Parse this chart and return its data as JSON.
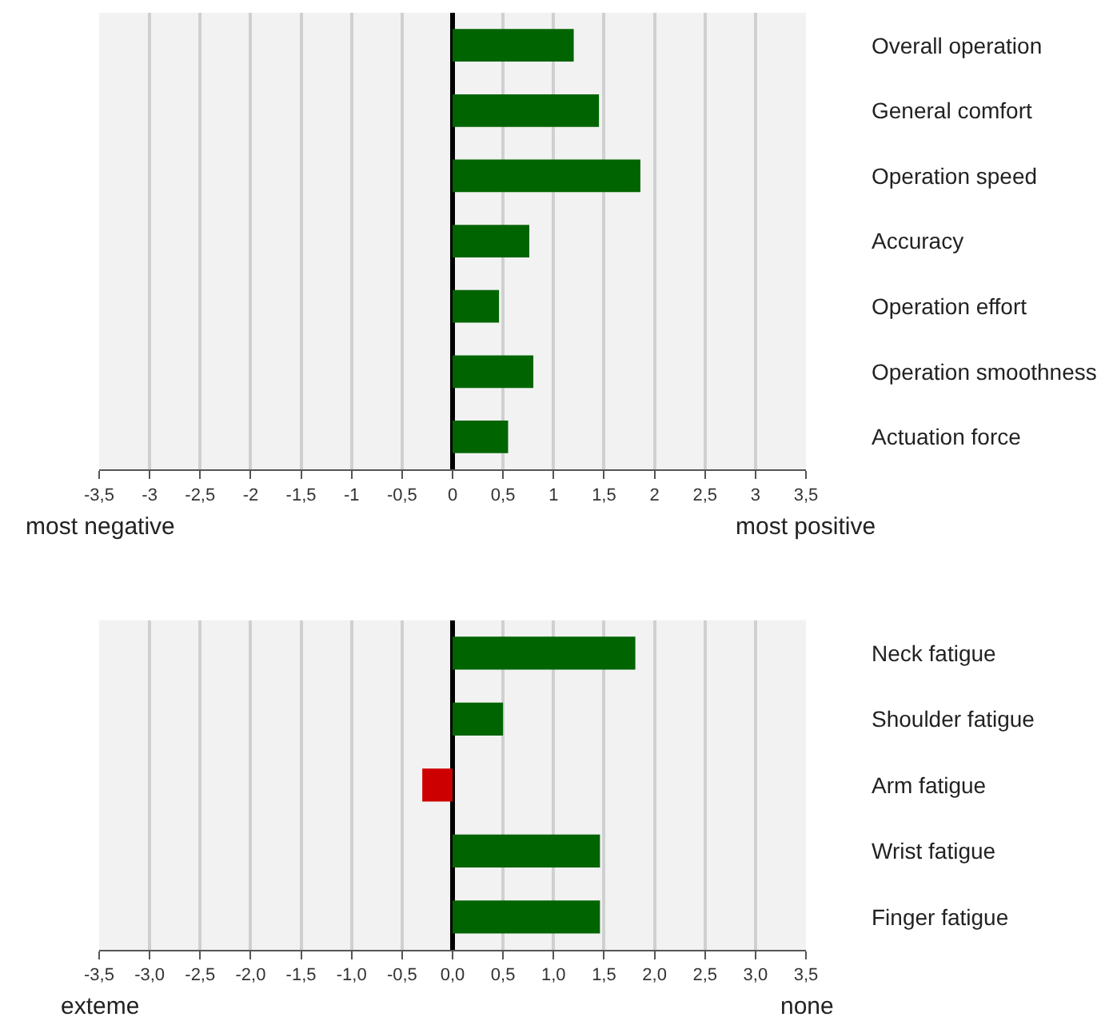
{
  "chart_data": [
    {
      "type": "bar",
      "orientation": "horizontal",
      "categories": [
        "Overall operation",
        "General comfort",
        "Operation speed",
        "Accuracy",
        "Operation effort",
        "Operation smoothness",
        "Actuation force"
      ],
      "values": [
        1.2,
        1.45,
        1.86,
        0.76,
        0.46,
        0.8,
        0.55
      ],
      "colors": [
        "#006400",
        "#006400",
        "#006400",
        "#006400",
        "#006400",
        "#006400",
        "#006400"
      ],
      "xlim": [
        -3.5,
        3.5
      ],
      "xticks": [
        {
          "value": -3.5,
          "label": "-3,5"
        },
        -3,
        {
          "value": -2.5,
          "label": "-2,5"
        },
        -2,
        {
          "value": -1.5,
          "label": "-1,5"
        },
        -1,
        {
          "value": -0.5,
          "label": "-0,5"
        },
        0,
        {
          "value": 0.5,
          "label": "0,5"
        },
        1,
        {
          "value": 1.5,
          "label": "1,5"
        },
        2,
        {
          "value": 2.5,
          "label": "2,5"
        },
        3,
        {
          "value": 3.5,
          "label": "3,5"
        }
      ],
      "grid": "x",
      "annotations": [
        "most negative",
        "most positive"
      ]
    },
    {
      "type": "bar",
      "orientation": "horizontal",
      "categories": [
        "Neck fatigue",
        "Shoulder fatigue",
        "Arm fatigue",
        "Wrist fatigue",
        "Finger fatigue"
      ],
      "values": [
        1.81,
        0.5,
        -0.3,
        1.46,
        1.46
      ],
      "colors": [
        "#006400",
        "#006400",
        "#cc0000",
        "#006400",
        "#006400"
      ],
      "xlim": [
        -3.5,
        3.5
      ],
      "xticks": [
        {
          "value": -3.5,
          "label": "-3,5"
        },
        {
          "value": -3,
          "label": "-3,0"
        },
        {
          "value": -2.5,
          "label": "-2,5"
        },
        {
          "value": -2,
          "label": "-2,0"
        },
        {
          "value": -1.5,
          "label": "-1,5"
        },
        {
          "value": -1,
          "label": "-1,0"
        },
        {
          "value": -0.5,
          "label": "-0,5"
        },
        {
          "value": 0,
          "label": "0,0"
        },
        {
          "value": 0.5,
          "label": "0,5"
        },
        {
          "value": 1,
          "label": "1,0"
        },
        {
          "value": 1.5,
          "label": "1,5"
        },
        {
          "value": 2,
          "label": "2,0"
        },
        {
          "value": 2.5,
          "label": "2,5"
        },
        {
          "value": 3,
          "label": "3,0"
        },
        {
          "value": 3.5,
          "label": "3,5"
        }
      ],
      "grid": "x",
      "annotations": [
        "exteme",
        "none"
      ]
    }
  ]
}
